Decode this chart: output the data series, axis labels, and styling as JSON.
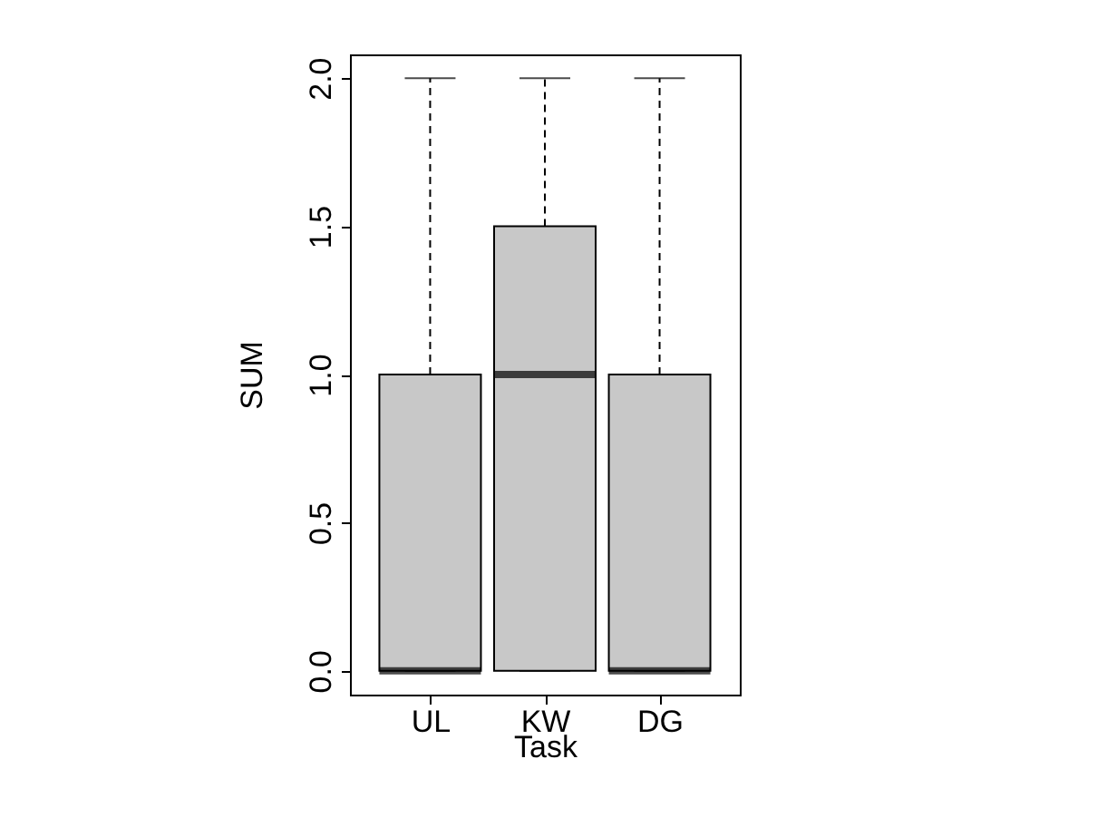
{
  "chart_data": {
    "type": "box",
    "xlabel": "Task",
    "ylabel": "SUM",
    "categories": [
      "UL",
      "KW",
      "DG"
    ],
    "boxes": [
      {
        "low": 0,
        "q1": 0,
        "median": 0,
        "q3": 1,
        "high": 2
      },
      {
        "low": 0,
        "q1": 0,
        "median": 1,
        "q3": 1.5,
        "high": 2
      },
      {
        "low": 0,
        "q1": 0,
        "median": 0,
        "q3": 1,
        "high": 2
      }
    ],
    "color": "#c8c8c8",
    "ylim": [
      -0.08,
      2.08
    ],
    "yticks": [
      {
        "value": 0,
        "label": "0.0"
      },
      {
        "value": 0.5,
        "label": "0.5"
      },
      {
        "value": 1,
        "label": "1.0"
      },
      {
        "value": 1.5,
        "label": "1.5"
      },
      {
        "value": 2,
        "label": "2.0"
      }
    ],
    "grid": false
  }
}
